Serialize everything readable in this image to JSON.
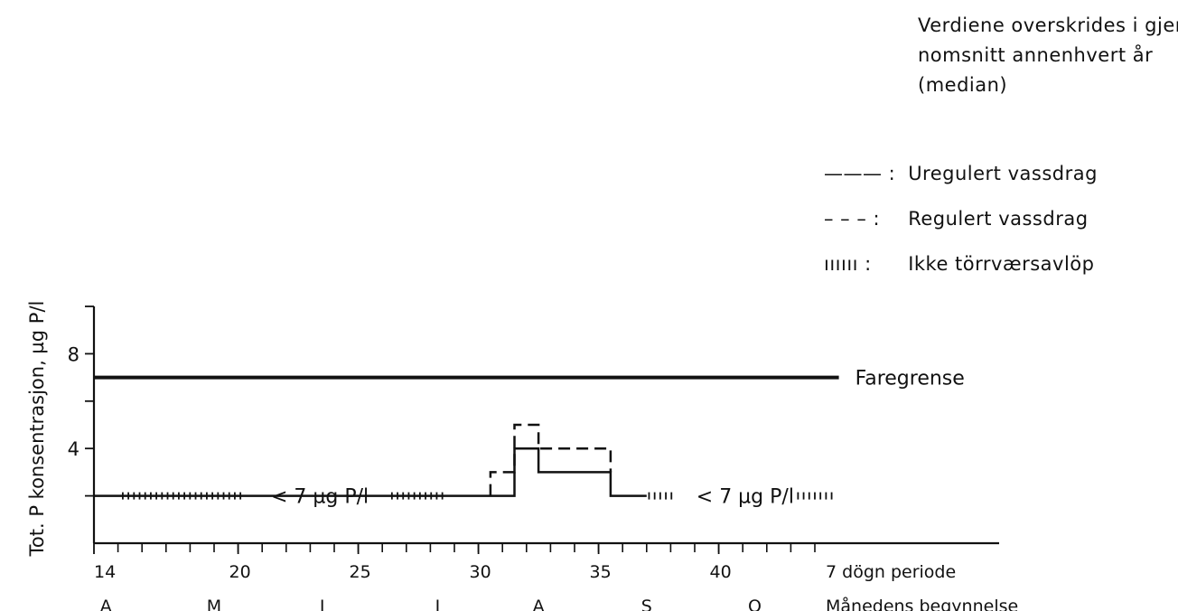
{
  "note": {
    "lines": [
      "Verdiene overskrides i gjen-",
      "nomsnitt annenhvert år",
      "(median)"
    ]
  },
  "legend": [
    {
      "symbol": "——— :",
      "label": "Uregulert vassdrag"
    },
    {
      "symbol": "– – – :",
      "label": "Regulert vassdrag"
    },
    {
      "symbol": "ıııııı :",
      "label": "Ikke törrværsavlöp"
    }
  ],
  "chart_data": {
    "type": "line",
    "ylabel": "Tot. P konsentrasjon, µg P/l",
    "xlabel": "7 dögn periode",
    "xlabel2": "Månedens begynnelse",
    "xlim": [
      14,
      52
    ],
    "ylim": [
      0,
      10
    ],
    "x_ticks": [
      14,
      20,
      25,
      30,
      35,
      40
    ],
    "y_ticks": [
      4,
      8
    ],
    "months": [
      "A",
      "M",
      "J",
      "J",
      "A",
      "S",
      "O"
    ],
    "month_positions": [
      14.5,
      19,
      23.5,
      28.3,
      32.5,
      37,
      41.5
    ],
    "reference_line": {
      "y": 7,
      "x_start": 14,
      "x_end": 45,
      "label": "Faregrense"
    },
    "series": [
      {
        "name": "Uregulert vassdrag",
        "style": "solid",
        "x": [
          14,
          15,
          28.8,
          31.5,
          31.5,
          32.5,
          32.5,
          35.5,
          35.5,
          37
        ],
        "y": [
          2,
          2,
          2,
          2,
          4,
          4,
          3,
          3,
          2,
          2
        ]
      },
      {
        "name": "Regulert vassdrag",
        "style": "dashed",
        "x": [
          30.5,
          30.5,
          31.5,
          31.5,
          32.5,
          32.5,
          35.5,
          35.5
        ],
        "y": [
          2,
          3,
          3,
          5,
          5,
          4,
          4,
          3
        ]
      },
      {
        "name": "Ikke törrværsavlöp",
        "style": "dotted",
        "segments": [
          [
            15.2,
            20.3
          ],
          [
            26.4,
            28.7
          ],
          [
            37.1,
            38.2
          ],
          [
            43.3,
            44.8
          ]
        ],
        "y": 2
      }
    ],
    "annotations": [
      {
        "text": "< 7 µg P/l",
        "x": 23.4,
        "y": 2
      },
      {
        "text": "< 7 µg P/l",
        "x": 41.1,
        "y": 2
      }
    ]
  }
}
